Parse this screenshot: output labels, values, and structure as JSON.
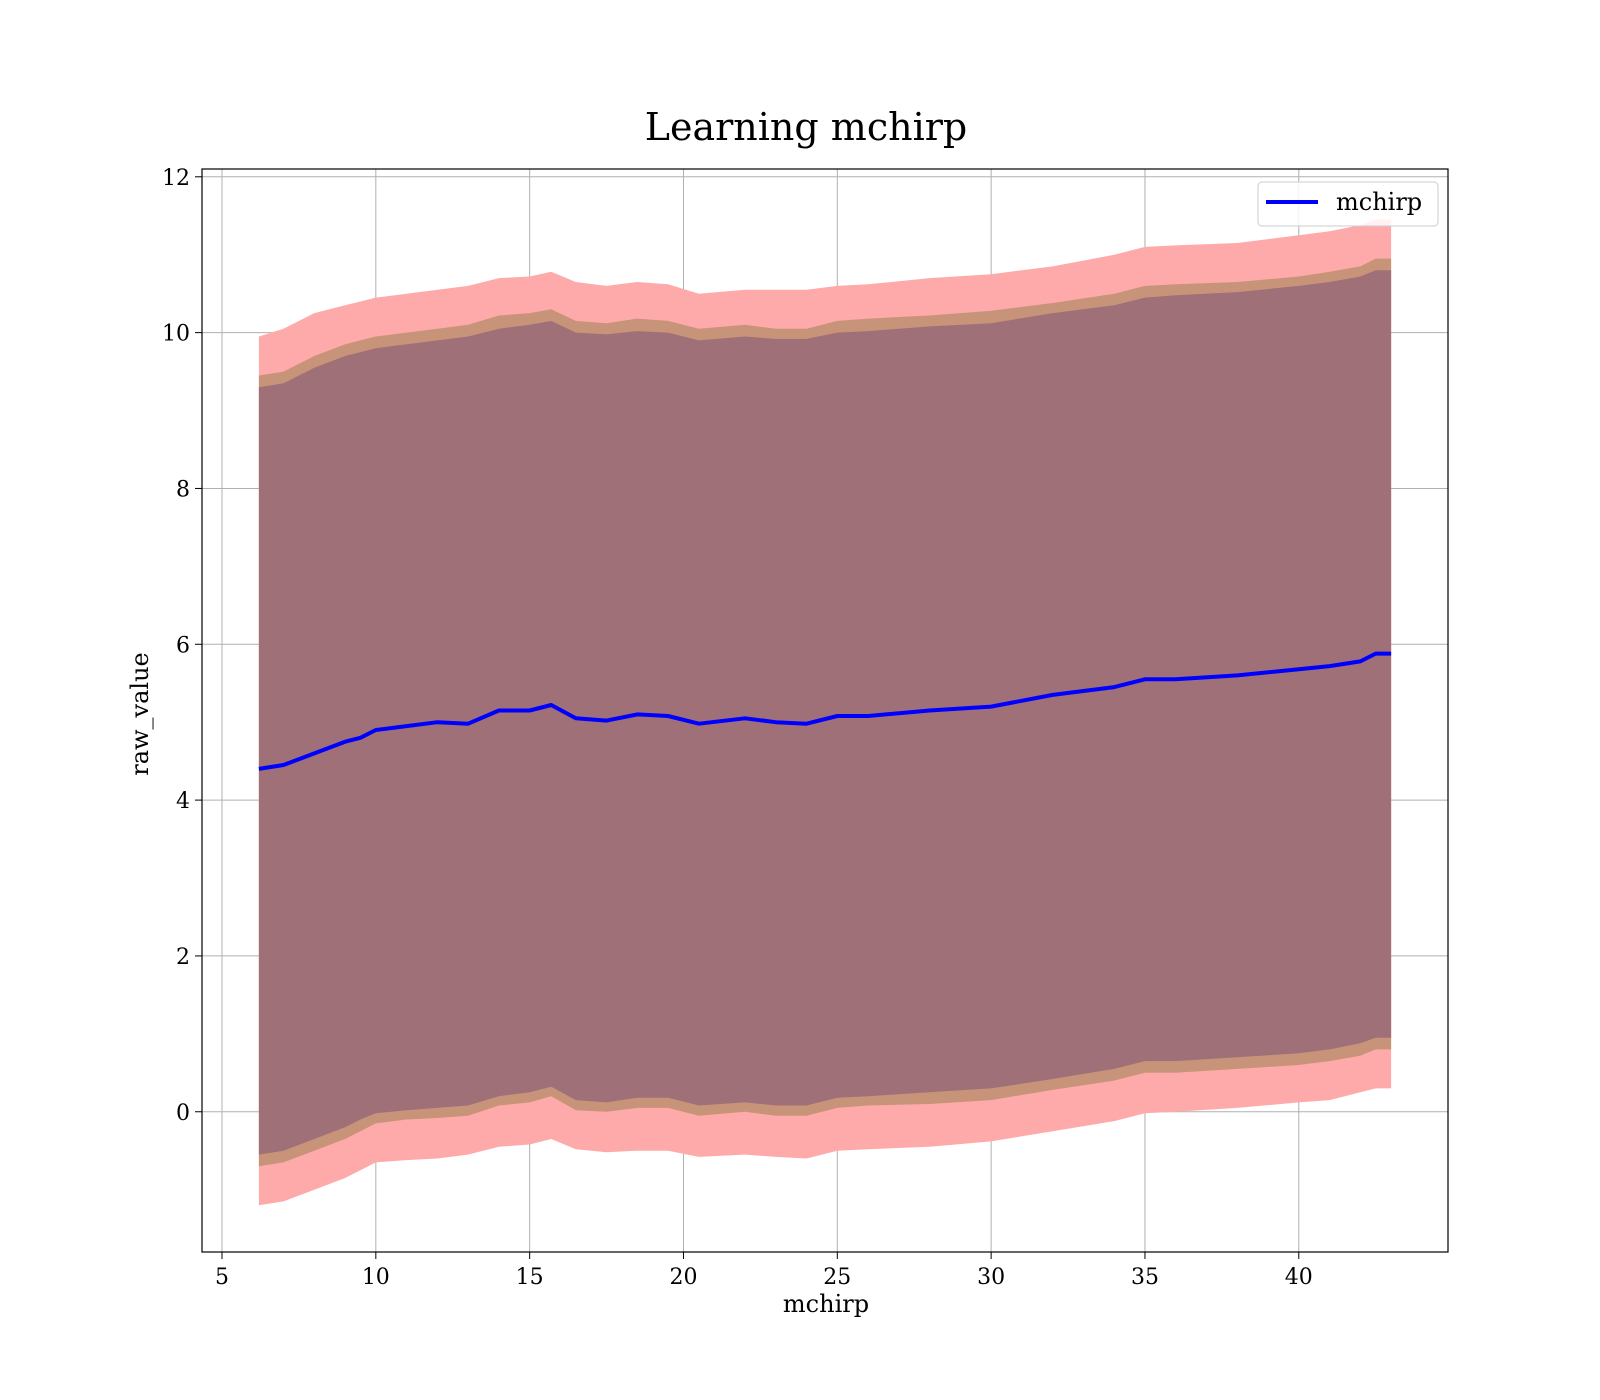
{
  "chart_data": {
    "type": "area",
    "title": "Learning mchirp",
    "xlabel": "mchirp",
    "ylabel": "raw_value",
    "xlim": [
      4.35,
      44.85
    ],
    "ylim": [
      -1.8,
      12.1
    ],
    "xticks": [
      5,
      10,
      15,
      20,
      25,
      30,
      35,
      40
    ],
    "yticks": [
      0,
      2,
      4,
      6,
      8,
      10,
      12
    ],
    "grid": true,
    "legend": {
      "position": "upper right",
      "entries": [
        "mchirp"
      ]
    },
    "colors": {
      "mean_line": "#0000ff",
      "outer_band": "#ffaaaa",
      "middle_band": "#c89479",
      "inner_band": "#a07078",
      "grid": "#b0b0b0"
    },
    "x": [
      6.2,
      7.0,
      8.0,
      9.0,
      9.5,
      10.0,
      11.0,
      12.0,
      13.0,
      14.0,
      15.0,
      15.7,
      16.5,
      17.5,
      18.5,
      19.5,
      20.5,
      22.0,
      23.0,
      24.0,
      25.0,
      26.0,
      28.0,
      30.0,
      32.0,
      34.0,
      35.0,
      36.0,
      38.0,
      40.0,
      41.0,
      42.0,
      42.5,
      43.0
    ],
    "series": [
      {
        "name": "mchirp",
        "role": "mean",
        "values": [
          4.4,
          4.45,
          4.6,
          4.75,
          4.8,
          4.9,
          4.95,
          5.0,
          4.98,
          5.15,
          5.15,
          5.22,
          5.05,
          5.02,
          5.1,
          5.08,
          4.98,
          5.05,
          5.0,
          4.98,
          5.08,
          5.08,
          5.15,
          5.2,
          5.35,
          5.45,
          5.55,
          5.55,
          5.6,
          5.68,
          5.72,
          5.78,
          5.88,
          5.88
        ]
      },
      {
        "role": "band_outer",
        "upper": [
          9.95,
          10.05,
          10.25,
          10.35,
          10.4,
          10.45,
          10.5,
          10.55,
          10.6,
          10.7,
          10.72,
          10.78,
          10.65,
          10.6,
          10.65,
          10.62,
          10.5,
          10.55,
          10.55,
          10.55,
          10.6,
          10.62,
          10.7,
          10.75,
          10.85,
          11.0,
          11.1,
          11.12,
          11.15,
          11.25,
          11.3,
          11.38,
          11.45,
          11.45
        ],
        "lower": [
          -1.2,
          -1.15,
          -1.0,
          -0.85,
          -0.75,
          -0.65,
          -0.62,
          -0.6,
          -0.55,
          -0.45,
          -0.42,
          -0.35,
          -0.48,
          -0.52,
          -0.5,
          -0.5,
          -0.58,
          -0.55,
          -0.58,
          -0.6,
          -0.5,
          -0.48,
          -0.45,
          -0.38,
          -0.25,
          -0.12,
          -0.02,
          0.0,
          0.05,
          0.12,
          0.15,
          0.25,
          0.3,
          0.3
        ]
      },
      {
        "role": "band_middle",
        "upper": [
          9.45,
          9.5,
          9.7,
          9.85,
          9.9,
          9.95,
          10.0,
          10.05,
          10.1,
          10.22,
          10.25,
          10.3,
          10.15,
          10.12,
          10.18,
          10.15,
          10.05,
          10.1,
          10.05,
          10.05,
          10.15,
          10.18,
          10.22,
          10.28,
          10.38,
          10.5,
          10.6,
          10.62,
          10.65,
          10.72,
          10.78,
          10.85,
          10.95,
          10.95
        ],
        "lower": [
          -0.7,
          -0.65,
          -0.5,
          -0.35,
          -0.25,
          -0.15,
          -0.1,
          -0.08,
          -0.05,
          0.08,
          0.12,
          0.2,
          0.02,
          0.0,
          0.05,
          0.05,
          -0.05,
          0.0,
          -0.05,
          -0.05,
          0.05,
          0.08,
          0.1,
          0.15,
          0.28,
          0.4,
          0.5,
          0.5,
          0.55,
          0.6,
          0.65,
          0.72,
          0.8,
          0.8
        ]
      },
      {
        "role": "band_inner",
        "upper": [
          9.3,
          9.35,
          9.55,
          9.7,
          9.75,
          9.8,
          9.85,
          9.9,
          9.95,
          10.05,
          10.1,
          10.15,
          10.0,
          9.98,
          10.02,
          10.0,
          9.9,
          9.95,
          9.92,
          9.92,
          10.0,
          10.02,
          10.08,
          10.12,
          10.25,
          10.35,
          10.45,
          10.48,
          10.52,
          10.6,
          10.65,
          10.72,
          10.8,
          10.8
        ],
        "lower": [
          -0.55,
          -0.5,
          -0.35,
          -0.2,
          -0.1,
          -0.02,
          0.02,
          0.05,
          0.08,
          0.2,
          0.25,
          0.32,
          0.15,
          0.12,
          0.18,
          0.18,
          0.08,
          0.12,
          0.08,
          0.08,
          0.18,
          0.2,
          0.25,
          0.3,
          0.42,
          0.55,
          0.65,
          0.65,
          0.7,
          0.75,
          0.8,
          0.88,
          0.95,
          0.95
        ]
      }
    ]
  }
}
